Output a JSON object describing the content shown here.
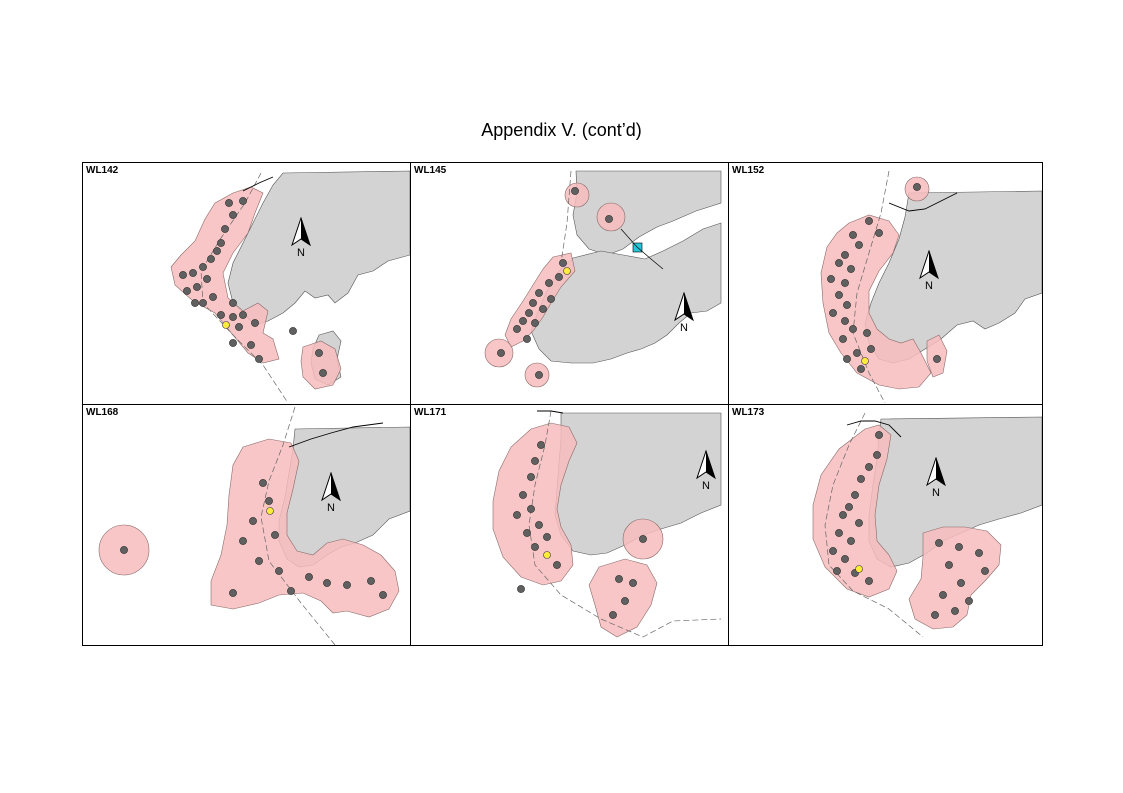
{
  "title": "Appendix V.  (cont’d)",
  "north_label": "N",
  "colors": {
    "land": "#d3d3d3",
    "range": "#f7bcbc",
    "range_edge": "#8a6a6a",
    "sighting": "#606060",
    "highlight": "#ffeb3b",
    "water_feature": "#26c6da"
  },
  "icons": [
    "north-arrow-icon"
  ],
  "panels": [
    {
      "id": "WL142"
    },
    {
      "id": "WL145"
    },
    {
      "id": "WL152"
    },
    {
      "id": "WL168"
    },
    {
      "id": "WL171"
    },
    {
      "id": "WL173"
    }
  ]
}
